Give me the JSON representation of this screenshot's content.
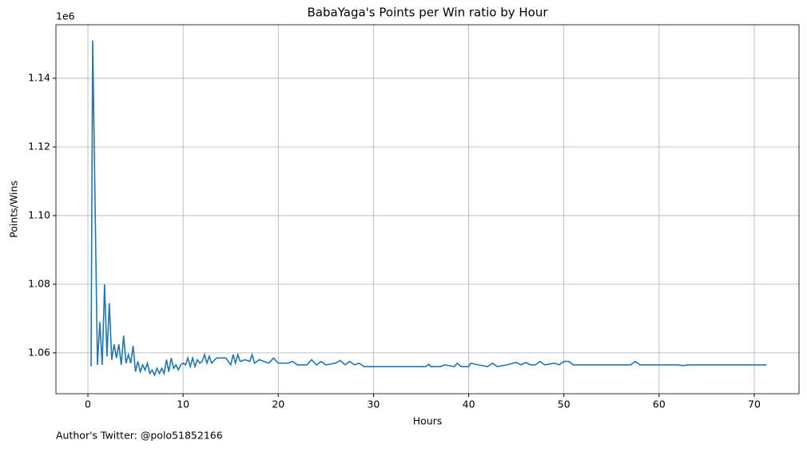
{
  "chart_data": {
    "type": "line",
    "title": "BabaYaga's Points per Win ratio by Hour",
    "x_label": "Hours",
    "y_label": "Points/Wins",
    "y_offset_label": "1e6",
    "footnote": "Author's Twitter: @polo51852166",
    "xlim": [
      -3.36,
      74.7
    ],
    "ylim": [
      1.0481,
      1.1556
    ],
    "xticks": [
      0,
      10,
      20,
      30,
      40,
      50,
      60,
      70
    ],
    "yticks": [
      1.06,
      1.08,
      {
        "value": 1.1,
        "label": "1.10"
      },
      1.12,
      1.14
    ],
    "grid": true,
    "series": [
      {
        "color": "#1f77b4",
        "x": [
          0.33,
          0.5,
          1.0,
          1.25,
          1.5,
          1.75,
          2.0,
          2.25,
          2.5,
          2.75,
          3.0,
          3.25,
          3.5,
          3.75,
          4.0,
          4.25,
          4.5,
          4.75,
          5.0,
          5.25,
          5.5,
          5.75,
          6.0,
          6.25,
          6.5,
          6.75,
          7.0,
          7.25,
          7.5,
          7.75,
          8.0,
          8.25,
          8.5,
          8.75,
          9.0,
          9.25,
          9.5,
          9.75,
          10,
          10.25,
          10.5,
          10.75,
          11,
          11.25,
          11.5,
          11.75,
          12,
          12.25,
          12.5,
          12.75,
          13,
          13.5,
          14,
          14.5,
          15,
          15.25,
          15.5,
          15.75,
          16,
          16.5,
          17,
          17.25,
          17.5,
          18,
          18.5,
          19,
          19.5,
          20,
          21,
          21.5,
          22,
          23,
          23.5,
          24,
          24.5,
          25,
          26,
          26.5,
          27,
          27.5,
          28,
          28.5,
          29,
          35.5,
          35.8,
          36,
          37,
          37.5,
          38.5,
          38.8,
          39.2,
          40,
          40.2,
          41,
          42,
          42.5,
          43,
          44,
          45,
          45.5,
          46,
          46.5,
          47,
          47.5,
          48,
          49,
          49.5,
          50,
          50.5,
          51,
          57,
          57.5,
          58,
          62,
          62.5,
          63,
          71.3
        ],
        "values": [
          1.056,
          1.151,
          1.0565,
          1.069,
          1.0565,
          1.08,
          1.059,
          1.0745,
          1.058,
          1.0625,
          1.0585,
          1.0625,
          1.0565,
          1.065,
          1.057,
          1.0595,
          1.057,
          1.062,
          1.0545,
          1.0575,
          1.0545,
          1.0565,
          1.055,
          1.057,
          1.054,
          1.055,
          1.0535,
          1.0555,
          1.054,
          1.0555,
          1.054,
          1.058,
          1.0545,
          1.0585,
          1.0555,
          1.0565,
          1.055,
          1.0565,
          1.057,
          1.0565,
          1.0585,
          1.056,
          1.0585,
          1.056,
          1.058,
          1.057,
          1.0575,
          1.0595,
          1.057,
          1.059,
          1.057,
          1.0585,
          1.0585,
          1.0585,
          1.0565,
          1.0595,
          1.057,
          1.0595,
          1.0575,
          1.058,
          1.0575,
          1.0595,
          1.057,
          1.058,
          1.0575,
          1.057,
          1.0585,
          1.057,
          1.057,
          1.0575,
          1.0565,
          1.0565,
          1.058,
          1.0565,
          1.0575,
          1.0565,
          1.057,
          1.0578,
          1.0565,
          1.0575,
          1.0565,
          1.057,
          1.056,
          1.056,
          1.0567,
          1.056,
          1.056,
          1.0565,
          1.056,
          1.057,
          1.056,
          1.056,
          1.057,
          1.0565,
          1.056,
          1.057,
          1.056,
          1.0565,
          1.0572,
          1.0565,
          1.0572,
          1.0565,
          1.0565,
          1.0575,
          1.0565,
          1.057,
          1.0565,
          1.0575,
          1.0575,
          1.0565,
          1.0565,
          1.0575,
          1.0565,
          1.0565,
          1.0563,
          1.0565,
          1.0565
        ]
      }
    ]
  }
}
